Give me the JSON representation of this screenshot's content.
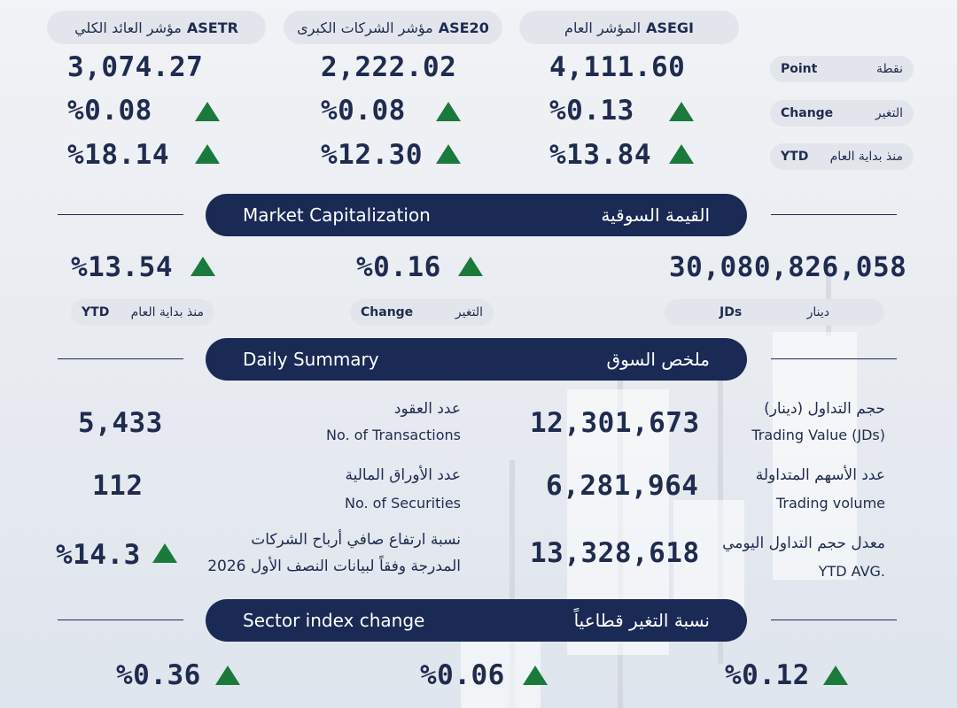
{
  "indices": [
    {
      "name_en": "ASEGI",
      "name_ar": "المؤشر العام",
      "point": "4,111.60",
      "change": "%0.13",
      "ytd": "%13.84"
    },
    {
      "name_en": "ASE20",
      "name_ar": "مؤشر الشركات الكبرى",
      "point": "2,222.02",
      "change": "%0.08",
      "ytd": "%12.30"
    },
    {
      "name_en": "ASETR",
      "name_ar": "مؤشر العائد الكلي",
      "point": "3,074.27",
      "change": "%0.08",
      "ytd": "%18.14"
    }
  ],
  "row_labels": {
    "point": {
      "en": "Point",
      "ar": "نقطة"
    },
    "change": {
      "en": "Change",
      "ar": "التغير"
    },
    "ytd": {
      "en": "YTD",
      "ar": "منذ بداية العام"
    }
  },
  "market_cap": {
    "title_en": "Market Capitalization",
    "title_ar": "القيمة السوقية",
    "value": "30,080,826,058",
    "value_unit": {
      "en": "JDs",
      "ar": "دينار"
    },
    "change": "%0.16",
    "change_label": {
      "en": "Change",
      "ar": "التغير"
    },
    "ytd": "%13.54",
    "ytd_label": {
      "en": "YTD",
      "ar": "منذ بداية العام"
    }
  },
  "daily_summary": {
    "title_en": "Daily Summary",
    "title_ar": "ملخص السوق",
    "trading_value": {
      "ar": "حجم التداول (دينار)",
      "en": "Trading Value (JDs)",
      "value": "12,301,673"
    },
    "trading_volume": {
      "ar": "عدد الأسهم المتداولة",
      "en": "Trading volume",
      "value": "6,281,964"
    },
    "ytd_avg": {
      "ar": "معدل حجم التداول اليومي",
      "en": "YTD AVG.",
      "value": "13,328,618"
    },
    "transactions": {
      "ar": "عدد العقود",
      "en": "No. of Transactions",
      "value": "5,433"
    },
    "securities": {
      "ar": "عدد الأوراق المالية",
      "en": "No. of Securities",
      "value": "112"
    },
    "profits": {
      "ar_line1": "نسبة ارتفاع صافي  أرباح الشركات",
      "ar_line2": "المدرجة وفقاً لبيانات النصف الأول 2026",
      "value": "%14.3"
    }
  },
  "sector": {
    "title_en": "Sector index change",
    "title_ar": "نسبة التغير قطاعياً",
    "values": [
      "%0.12",
      "%0.06",
      "%0.36"
    ]
  },
  "colors": {
    "navy": "#1a2a55",
    "up": "#1a7a3c",
    "pill": "#e2e6ec"
  },
  "icons": {
    "up": "up-triangle-icon"
  }
}
